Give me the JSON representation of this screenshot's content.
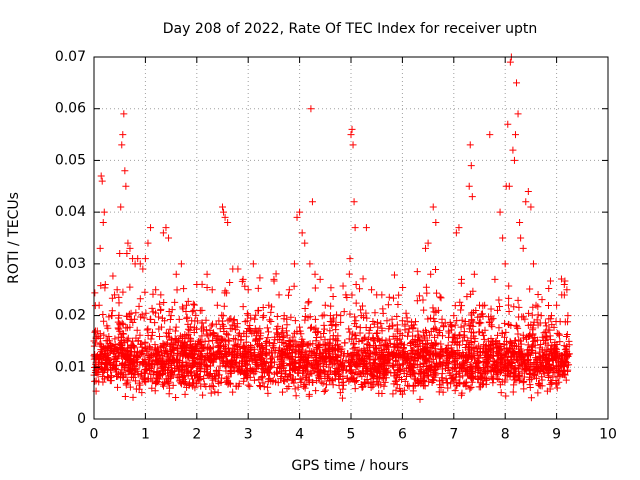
{
  "chart_data": {
    "type": "scatter",
    "title": "Day 208 of 2022, Rate Of TEC Index for receiver uptn",
    "xlabel": "GPS time / hours",
    "ylabel": "ROTI / TECUs",
    "xlim": [
      0,
      10
    ],
    "ylim": [
      0,
      0.07
    ],
    "xticks": [
      0,
      1,
      2,
      3,
      4,
      5,
      6,
      7,
      8,
      9,
      10
    ],
    "yticks": [
      0,
      0.01,
      0.02,
      0.03,
      0.04,
      0.05,
      0.06,
      0.07
    ],
    "ytick_labels": [
      "0",
      "0.01",
      "0.02",
      "0.03",
      "0.04",
      "0.05",
      "0.06",
      "0.07"
    ],
    "grid": true,
    "marker": "+",
    "color": "#ff0000",
    "x_data_range": [
      0,
      9.25
    ],
    "series": [
      {
        "name": "ROTI",
        "points": [
          [
            0.02,
            0.012
          ],
          [
            0.05,
            0.009
          ],
          [
            0.08,
            0.016
          ],
          [
            0.1,
            0.022
          ],
          [
            0.12,
            0.033
          ],
          [
            0.14,
            0.047
          ],
          [
            0.16,
            0.046
          ],
          [
            0.18,
            0.038
          ],
          [
            0.2,
            0.04
          ],
          [
            0.22,
            0.026
          ],
          [
            0.25,
            0.018
          ],
          [
            0.28,
            0.014
          ],
          [
            0.3,
            0.011
          ],
          [
            0.35,
            0.02
          ],
          [
            0.4,
            0.024
          ],
          [
            0.45,
            0.025
          ],
          [
            0.5,
            0.032
          ],
          [
            0.52,
            0.041
          ],
          [
            0.54,
            0.053
          ],
          [
            0.56,
            0.055
          ],
          [
            0.58,
            0.059
          ],
          [
            0.6,
            0.048
          ],
          [
            0.62,
            0.045
          ],
          [
            0.64,
            0.032
          ],
          [
            0.66,
            0.034
          ],
          [
            0.7,
            0.033
          ],
          [
            0.75,
            0.031
          ],
          [
            0.8,
            0.03
          ],
          [
            0.85,
            0.031
          ],
          [
            0.9,
            0.03
          ],
          [
            0.95,
            0.029
          ],
          [
            1.0,
            0.031
          ],
          [
            1.05,
            0.034
          ],
          [
            1.1,
            0.037
          ],
          [
            1.2,
            0.025
          ],
          [
            1.3,
            0.024
          ],
          [
            1.35,
            0.036
          ],
          [
            1.4,
            0.037
          ],
          [
            1.45,
            0.035
          ],
          [
            1.5,
            0.02
          ],
          [
            1.6,
            0.028
          ],
          [
            1.7,
            0.03
          ],
          [
            1.8,
            0.022
          ],
          [
            1.9,
            0.019
          ],
          [
            2.0,
            0.026
          ],
          [
            2.1,
            0.021
          ],
          [
            2.2,
            0.028
          ],
          [
            2.3,
            0.025
          ],
          [
            2.4,
            0.022
          ],
          [
            2.5,
            0.041
          ],
          [
            2.52,
            0.04
          ],
          [
            2.55,
            0.039
          ],
          [
            2.6,
            0.038
          ],
          [
            2.7,
            0.029
          ],
          [
            2.8,
            0.029
          ],
          [
            2.9,
            0.027
          ],
          [
            3.0,
            0.025
          ],
          [
            3.1,
            0.03
          ],
          [
            3.2,
            0.021
          ],
          [
            3.3,
            0.02
          ],
          [
            3.4,
            0.022
          ],
          [
            3.5,
            0.027
          ],
          [
            3.6,
            0.024
          ],
          [
            3.7,
            0.02
          ],
          [
            3.8,
            0.025
          ],
          [
            3.9,
            0.03
          ],
          [
            3.95,
            0.039
          ],
          [
            4.0,
            0.04
          ],
          [
            4.05,
            0.036
          ],
          [
            4.1,
            0.034
          ],
          [
            4.2,
            0.03
          ],
          [
            4.22,
            0.06
          ],
          [
            4.25,
            0.042
          ],
          [
            4.3,
            0.028
          ],
          [
            4.4,
            0.027
          ],
          [
            4.5,
            0.022
          ],
          [
            4.6,
            0.02
          ],
          [
            4.7,
            0.018
          ],
          [
            4.8,
            0.02
          ],
          [
            4.9,
            0.024
          ],
          [
            4.98,
            0.031
          ],
          [
            5.0,
            0.055
          ],
          [
            5.02,
            0.056
          ],
          [
            5.04,
            0.053
          ],
          [
            5.06,
            0.042
          ],
          [
            5.08,
            0.037
          ],
          [
            5.1,
            0.026
          ],
          [
            5.2,
            0.02
          ],
          [
            5.3,
            0.037
          ],
          [
            5.4,
            0.025
          ],
          [
            5.5,
            0.024
          ],
          [
            5.6,
            0.024
          ],
          [
            5.7,
            0.019
          ],
          [
            5.8,
            0.018
          ],
          [
            5.9,
            0.017
          ],
          [
            6.0,
            0.019
          ],
          [
            6.1,
            0.016
          ],
          [
            6.2,
            0.015
          ],
          [
            6.3,
            0.017
          ],
          [
            6.4,
            0.023
          ],
          [
            6.45,
            0.033
          ],
          [
            6.5,
            0.034
          ],
          [
            6.55,
            0.028
          ],
          [
            6.6,
            0.041
          ],
          [
            6.65,
            0.038
          ],
          [
            6.7,
            0.021
          ],
          [
            6.8,
            0.018
          ],
          [
            6.9,
            0.017
          ],
          [
            7.0,
            0.02
          ],
          [
            7.05,
            0.036
          ],
          [
            7.1,
            0.037
          ],
          [
            7.15,
            0.027
          ],
          [
            7.2,
            0.018
          ],
          [
            7.3,
            0.045
          ],
          [
            7.32,
            0.053
          ],
          [
            7.34,
            0.049
          ],
          [
            7.36,
            0.043
          ],
          [
            7.4,
            0.028
          ],
          [
            7.5,
            0.022
          ],
          [
            7.6,
            0.022
          ],
          [
            7.7,
            0.055
          ],
          [
            7.75,
            0.015
          ],
          [
            7.8,
            0.027
          ],
          [
            7.85,
            0.021
          ],
          [
            7.9,
            0.04
          ],
          [
            7.95,
            0.035
          ],
          [
            8.0,
            0.03
          ],
          [
            8.02,
            0.045
          ],
          [
            8.05,
            0.057
          ],
          [
            8.08,
            0.045
          ],
          [
            8.1,
            0.069
          ],
          [
            8.12,
            0.07
          ],
          [
            8.15,
            0.052
          ],
          [
            8.18,
            0.05
          ],
          [
            8.2,
            0.055
          ],
          [
            8.22,
            0.065
          ],
          [
            8.25,
            0.059
          ],
          [
            8.28,
            0.038
          ],
          [
            8.3,
            0.035
          ],
          [
            8.35,
            0.033
          ],
          [
            8.4,
            0.042
          ],
          [
            8.45,
            0.044
          ],
          [
            8.5,
            0.041
          ],
          [
            8.55,
            0.03
          ],
          [
            8.6,
            0.022
          ],
          [
            8.7,
            0.02
          ],
          [
            8.8,
            0.018
          ],
          [
            8.9,
            0.02
          ],
          [
            9.0,
            0.022
          ],
          [
            9.1,
            0.024
          ],
          [
            9.15,
            0.026
          ],
          [
            9.2,
            0.025
          ],
          [
            9.22,
            0.02
          ],
          [
            9.24,
            0.015
          ]
        ],
        "baseline_band": {
          "x_range": [
            0,
            9.25
          ],
          "y_range": [
            0.003,
            0.016
          ],
          "density": "dense"
        }
      }
    ]
  }
}
